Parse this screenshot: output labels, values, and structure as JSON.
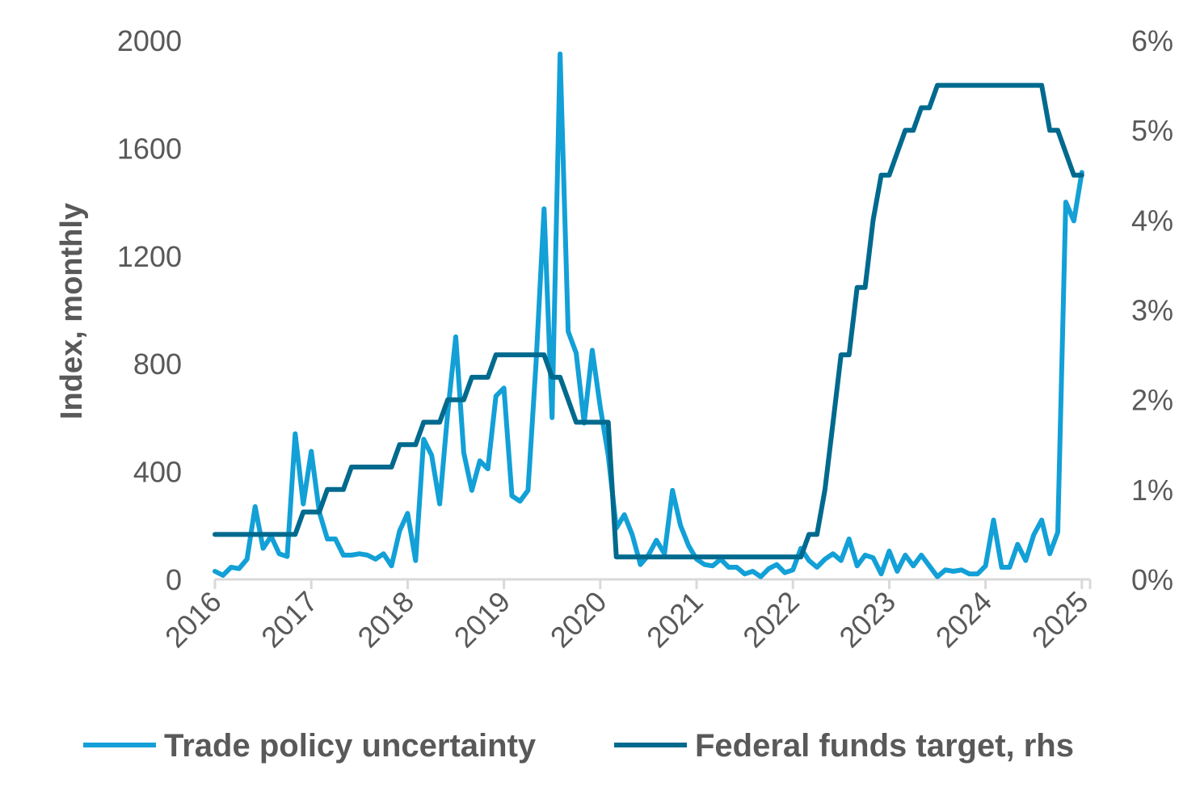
{
  "chart_data": {
    "type": "line",
    "title": "",
    "xlabel": "",
    "ylabel": "Index, monthly",
    "ylabel_right": "",
    "x_start": "2016-01",
    "frequency": "monthly",
    "x_ticks": [
      "2016",
      "2017",
      "2018",
      "2019",
      "2020",
      "2021",
      "2022",
      "2023",
      "2024",
      "2025"
    ],
    "ylim": [
      0,
      2000
    ],
    "y_ticks": [
      "0",
      "400",
      "800",
      "1200",
      "1600",
      "2000"
    ],
    "ylim_right": [
      0,
      6
    ],
    "y_ticks_right": [
      "0%",
      "1%",
      "2%",
      "3%",
      "4%",
      "5%",
      "6%"
    ],
    "grid": false,
    "legend_position": "bottom",
    "series": [
      {
        "name": "Trade policy uncertainty",
        "axis": "left",
        "color": "#12a0d7",
        "values": [
          30,
          15,
          45,
          40,
          75,
          270,
          115,
          160,
          95,
          85,
          540,
          280,
          475,
          250,
          150,
          150,
          90,
          90,
          95,
          90,
          75,
          95,
          50,
          180,
          245,
          70,
          520,
          460,
          280,
          620,
          900,
          470,
          330,
          440,
          410,
          680,
          710,
          310,
          290,
          330,
          800,
          1375,
          600,
          1950,
          920,
          840,
          580,
          850,
          640,
          460,
          190,
          240,
          165,
          55,
          90,
          145,
          95,
          330,
          200,
          125,
          75,
          55,
          50,
          75,
          45,
          45,
          20,
          30,
          10,
          40,
          55,
          25,
          35,
          115,
          70,
          45,
          75,
          95,
          70,
          150,
          50,
          90,
          80,
          20,
          105,
          30,
          90,
          50,
          90,
          50,
          10,
          35,
          30,
          35,
          20,
          20,
          50,
          220,
          45,
          45,
          130,
          70,
          165,
          220,
          95,
          175,
          1400,
          1330,
          1510
        ]
      },
      {
        "name": "Federal funds target, rhs",
        "axis": "right",
        "color": "#006a8e",
        "values": [
          0.5,
          0.5,
          0.5,
          0.5,
          0.5,
          0.5,
          0.5,
          0.5,
          0.5,
          0.5,
          0.5,
          0.75,
          0.75,
          0.75,
          1.0,
          1.0,
          1.0,
          1.25,
          1.25,
          1.25,
          1.25,
          1.25,
          1.25,
          1.5,
          1.5,
          1.5,
          1.75,
          1.75,
          1.75,
          2.0,
          2.0,
          2.0,
          2.25,
          2.25,
          2.25,
          2.5,
          2.5,
          2.5,
          2.5,
          2.5,
          2.5,
          2.5,
          2.25,
          2.25,
          2.0,
          1.75,
          1.75,
          1.75,
          1.75,
          1.75,
          0.25,
          0.25,
          0.25,
          0.25,
          0.25,
          0.25,
          0.25,
          0.25,
          0.25,
          0.25,
          0.25,
          0.25,
          0.25,
          0.25,
          0.25,
          0.25,
          0.25,
          0.25,
          0.25,
          0.25,
          0.25,
          0.25,
          0.25,
          0.25,
          0.5,
          0.5,
          1.0,
          1.75,
          2.5,
          2.5,
          3.25,
          3.25,
          4.0,
          4.5,
          4.5,
          4.75,
          5.0,
          5.0,
          5.25,
          5.25,
          5.5,
          5.5,
          5.5,
          5.5,
          5.5,
          5.5,
          5.5,
          5.5,
          5.5,
          5.5,
          5.5,
          5.5,
          5.5,
          5.5,
          5.0,
          5.0,
          4.75,
          4.5,
          4.5
        ]
      }
    ]
  }
}
